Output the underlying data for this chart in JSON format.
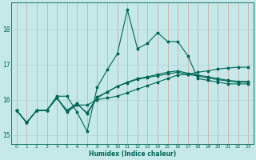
{
  "xlabel": "Humidex (Indice chaleur)",
  "bg_color": "#c5e8e8",
  "grid_color_v": "#d4a0a0",
  "grid_color_h": "#b0d4d4",
  "line_color": "#006655",
  "xlim": [
    -0.5,
    23.5
  ],
  "ylim": [
    14.75,
    18.75
  ],
  "xticks": [
    0,
    1,
    2,
    3,
    4,
    5,
    6,
    7,
    8,
    9,
    10,
    11,
    12,
    13,
    14,
    15,
    16,
    17,
    18,
    19,
    20,
    21,
    22,
    23
  ],
  "yticks": [
    15,
    16,
    17,
    18
  ],
  "line1": [
    15.7,
    15.35,
    15.7,
    15.7,
    16.1,
    16.1,
    15.65,
    15.1,
    16.35,
    16.85,
    17.3,
    18.55,
    17.45,
    17.6,
    17.9,
    17.65,
    17.65,
    17.25,
    16.6,
    16.55,
    16.5,
    16.45,
    16.45,
    16.45
  ],
  "line2": [
    15.7,
    15.35,
    15.7,
    15.7,
    16.05,
    15.65,
    15.85,
    15.85,
    16.0,
    16.05,
    16.1,
    16.2,
    16.3,
    16.4,
    16.5,
    16.6,
    16.7,
    16.72,
    16.78,
    16.82,
    16.87,
    16.9,
    16.92,
    16.92
  ],
  "line3": [
    15.7,
    15.35,
    15.7,
    15.7,
    16.05,
    15.7,
    15.9,
    15.6,
    16.05,
    16.22,
    16.38,
    16.5,
    16.6,
    16.65,
    16.72,
    16.78,
    16.82,
    16.75,
    16.7,
    16.65,
    16.6,
    16.55,
    16.52,
    16.52
  ],
  "line4": [
    15.7,
    15.35,
    15.7,
    15.7,
    16.05,
    15.68,
    15.88,
    15.63,
    16.08,
    16.22,
    16.38,
    16.48,
    16.58,
    16.63,
    16.68,
    16.73,
    16.78,
    16.72,
    16.67,
    16.62,
    16.57,
    16.53,
    16.5,
    16.5
  ]
}
